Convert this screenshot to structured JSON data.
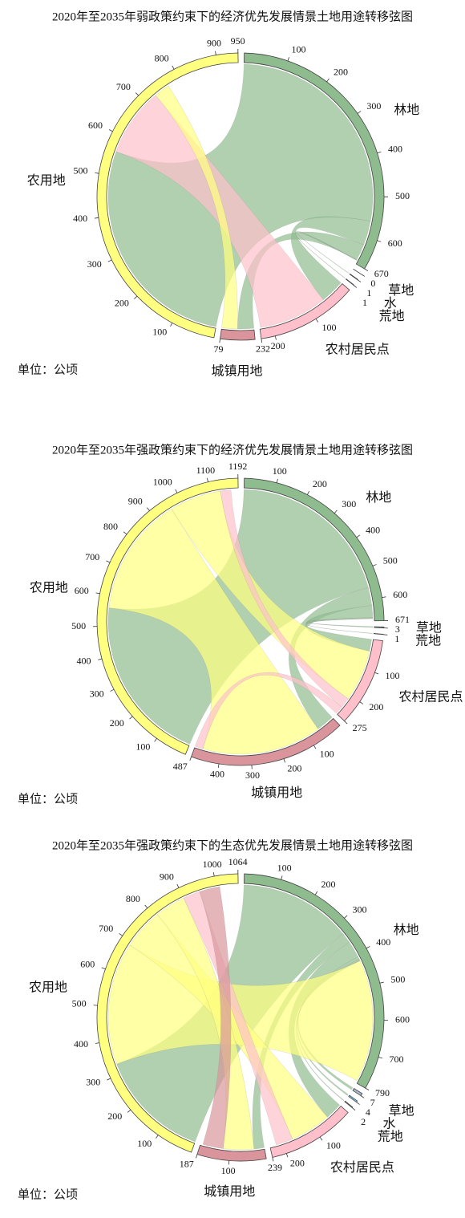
{
  "chart_data": [
    {
      "type": "chord",
      "title": "2020年至2035年弱政策约束下的经济优先发展情景土地用途转移弦图",
      "unit": "单位：公顷",
      "nodes": [
        {
          "name": "林地",
          "color": "#8fbc8f",
          "total": 670,
          "ticks": [
            100,
            200,
            300,
            400,
            500,
            600
          ]
        },
        {
          "name": "草地",
          "color": "#a9b8c8",
          "total": 0,
          "ticks": []
        },
        {
          "name": "水",
          "color": "#87cefa",
          "total": 1,
          "ticks": []
        },
        {
          "name": "荒地",
          "color": "#a9a9a9",
          "total": 1,
          "ticks": []
        },
        {
          "name": "农村居民点",
          "color": "#ffc0cb",
          "total": 232,
          "ticks": [
            100,
            200
          ]
        },
        {
          "name": "城镇用地",
          "color": "#d9959b",
          "total": 79,
          "ticks": []
        },
        {
          "name": "农用地",
          "color": "#ffff80",
          "total": 950,
          "ticks": [
            100,
            200,
            300,
            400,
            500,
            600,
            700,
            800,
            900
          ]
        }
      ],
      "links": [
        {
          "source": "林地",
          "target": "农用地",
          "value": 560
        },
        {
          "source": "林地",
          "target": "农村居民点",
          "value": 60
        },
        {
          "source": "林地",
          "target": "城镇用地",
          "value": 40
        },
        {
          "source": "林地",
          "target": "水",
          "value": 1
        },
        {
          "source": "林地",
          "target": "荒地",
          "value": 1
        },
        {
          "source": "农村居民点",
          "target": "农用地",
          "value": 170
        },
        {
          "source": "农用地",
          "target": "城镇用地",
          "value": 39
        }
      ]
    },
    {
      "type": "chord",
      "title": "2020年至2035年强政策约束下的经济优先发展情景土地用途转移弦图",
      "unit": "单位：公顷",
      "nodes": [
        {
          "name": "林地",
          "color": "#8fbc8f",
          "total": 671,
          "ticks": [
            100,
            200,
            300,
            400,
            500,
            600
          ]
        },
        {
          "name": "草地",
          "color": "#a9b8c8",
          "total": 3,
          "ticks": []
        },
        {
          "name": "荒地",
          "color": "#a9a9a9",
          "total": 1,
          "ticks": []
        },
        {
          "name": "农村居民点",
          "color": "#ffc0cb",
          "total": 275,
          "ticks": [
            100,
            200
          ]
        },
        {
          "name": "城镇用地",
          "color": "#d9959b",
          "total": 487,
          "ticks": [
            100,
            200,
            300,
            400
          ]
        },
        {
          "name": "农用地",
          "color": "#ffff80",
          "total": 1192,
          "ticks": [
            100,
            200,
            300,
            400,
            500,
            600,
            700,
            800,
            900,
            1000,
            1100
          ]
        }
      ],
      "links": [
        {
          "source": "林地",
          "target": "农用地",
          "value": 560
        },
        {
          "source": "林地",
          "target": "城镇用地",
          "value": 60
        },
        {
          "source": "林地",
          "target": "农村居民点",
          "value": 40
        },
        {
          "source": "林地",
          "target": "草地",
          "value": 3
        },
        {
          "source": "林地",
          "target": "荒地",
          "value": 1
        },
        {
          "source": "农用地",
          "target": "城镇用地",
          "value": 400
        },
        {
          "source": "农用地",
          "target": "农村居民点",
          "value": 173
        },
        {
          "source": "农村居民点",
          "target": "农用地",
          "value": 35
        },
        {
          "source": "农村居民点",
          "target": "城镇用地",
          "value": 27
        }
      ]
    },
    {
      "type": "chord",
      "title": "2020年至2035年强政策约束下的生态优先发展情景土地用途转移弦图",
      "unit": "单位：公顷",
      "nodes": [
        {
          "name": "林地",
          "color": "#8fbc8f",
          "total": 790,
          "ticks": [
            100,
            200,
            300,
            400,
            500,
            600,
            700
          ]
        },
        {
          "name": "草地",
          "color": "#a9b8c8",
          "total": 7,
          "ticks": []
        },
        {
          "name": "水",
          "color": "#87cefa",
          "total": 4,
          "ticks": []
        },
        {
          "name": "荒地",
          "color": "#a9a9a9",
          "total": 2,
          "ticks": []
        },
        {
          "name": "农村居民点",
          "color": "#ffc0cb",
          "total": 239,
          "ticks": [
            100,
            200
          ]
        },
        {
          "name": "城镇用地",
          "color": "#d9959b",
          "total": 187,
          "ticks": [
            100
          ]
        },
        {
          "name": "农用地",
          "color": "#ffff80",
          "total": 1064,
          "ticks": [
            100,
            200,
            300,
            400,
            500,
            600,
            700,
            800,
            900,
            1000
          ]
        }
      ],
      "links": [
        {
          "source": "林地",
          "target": "农用地",
          "value": 330
        },
        {
          "source": "林地",
          "target": "城镇用地",
          "value": 30
        },
        {
          "source": "林地",
          "target": "农村居民点",
          "value": 50
        },
        {
          "source": "林地",
          "target": "草地",
          "value": 7
        },
        {
          "source": "林地",
          "target": "水",
          "value": 4
        },
        {
          "source": "林地",
          "target": "荒地",
          "value": 2
        },
        {
          "source": "农用地",
          "target": "林地",
          "value": 360
        },
        {
          "source": "农用地",
          "target": "农村居民点",
          "value": 120
        },
        {
          "source": "农用地",
          "target": "城镇用地",
          "value": 90
        },
        {
          "source": "农村居民点",
          "target": "农用地",
          "value": 50
        },
        {
          "source": "城镇用地",
          "target": "农用地",
          "value": 60
        }
      ]
    }
  ]
}
